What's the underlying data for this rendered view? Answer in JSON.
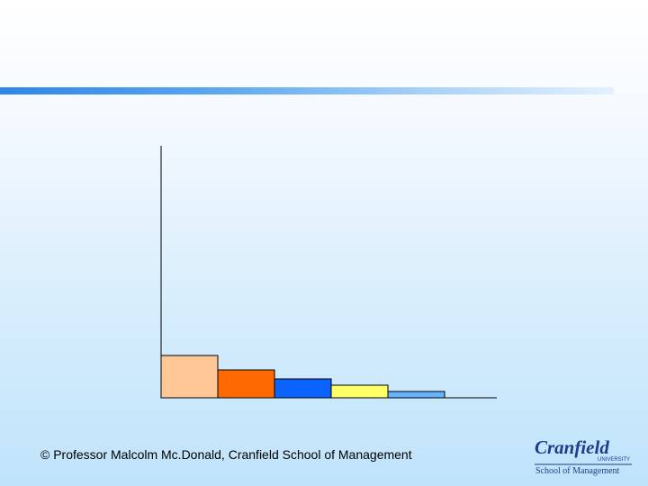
{
  "chart_data": {
    "type": "bar",
    "categories": [
      "",
      "",
      "",
      "",
      ""
    ],
    "values": [
      47,
      31,
      21,
      14,
      7
    ],
    "colors": [
      "#ffc796",
      "#ff6a00",
      "#0a63ff",
      "#ffff66",
      "#66b3ff"
    ],
    "ylim": [
      0,
      280
    ],
    "grid": false,
    "legend": "none"
  },
  "footer": {
    "text": "© Professor Malcolm Mc.Donald, Cranfield School of Management"
  },
  "logo": {
    "name": "Cranfield",
    "sub": "UNIVERSITY",
    "school": "School of Management"
  }
}
